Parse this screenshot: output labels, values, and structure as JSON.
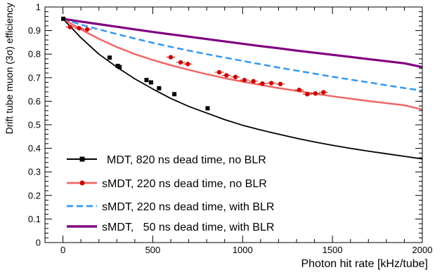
{
  "chart_data": {
    "type": "line",
    "xlabel": "Photon hit rate [kHz/tube]",
    "ylabel": "Drift tube muon (3σ) efficiency",
    "xlim": [
      -100,
      2000
    ],
    "ylim": [
      0,
      1
    ],
    "grid": false,
    "legend_position": "bottom-left",
    "x_ticks": [
      0,
      500,
      1000,
      1500,
      2000
    ],
    "x_tick_labels": [
      "0",
      "500",
      "1000",
      "1500",
      "2000"
    ],
    "y_ticks": [
      0,
      0.1,
      0.2,
      0.3,
      0.4,
      0.5,
      0.6,
      0.7,
      0.8,
      0.9,
      1
    ],
    "y_tick_labels": [
      "0",
      "0.1",
      "0.2",
      "0.3",
      "0.4",
      "0.5",
      "0.6",
      "0.7",
      "0.8",
      "0.9",
      "1"
    ],
    "series": [
      {
        "name": "MDT, 820 ns dead time, no BLR",
        "color": "#000000",
        "line_style": "solid",
        "marker": "square",
        "curve": {
          "x": [
            0,
            100,
            200,
            300,
            400,
            500,
            600,
            700,
            800,
            900,
            1000,
            1100,
            1200,
            1300,
            1400,
            1500,
            1600,
            1700,
            1800,
            1900,
            2000
          ],
          "y": [
            0.95,
            0.87,
            0.8,
            0.745,
            0.695,
            0.652,
            0.612,
            0.578,
            0.55,
            0.522,
            0.498,
            0.478,
            0.46,
            0.443,
            0.427,
            0.413,
            0.4,
            0.388,
            0.377,
            0.366,
            0.355
          ]
        },
        "points": {
          "x": [
            2,
            260,
            305,
            315,
            465,
            490,
            535,
            620,
            805
          ],
          "y": [
            0.95,
            0.785,
            0.75,
            0.745,
            0.69,
            0.68,
            0.655,
            0.63,
            0.57
          ]
        }
      },
      {
        "name": "sMDT, 220 ns dead time, no BLR",
        "color": "#f06666",
        "marker_color": "#cc0000",
        "line_style": "solid",
        "marker": "circle",
        "curve": {
          "x": [
            0,
            100,
            200,
            300,
            400,
            500,
            600,
            700,
            800,
            900,
            1000,
            1100,
            1200,
            1300,
            1400,
            1500,
            1600,
            1700,
            1800,
            1900,
            2000
          ],
          "y": [
            0.95,
            0.905,
            0.865,
            0.83,
            0.8,
            0.775,
            0.753,
            0.733,
            0.715,
            0.698,
            0.683,
            0.669,
            0.656,
            0.644,
            0.632,
            0.621,
            0.611,
            0.601,
            0.592,
            0.583,
            0.565
          ]
        },
        "points": {
          "x": [
            40,
            90,
            135,
            600,
            655,
            695,
            870,
            910,
            960,
            1010,
            1060,
            1110,
            1160,
            1210,
            1315,
            1360,
            1405,
            1450
          ],
          "y": [
            0.915,
            0.91,
            0.905,
            0.787,
            0.765,
            0.758,
            0.723,
            0.71,
            0.703,
            0.69,
            0.685,
            0.675,
            0.677,
            0.673,
            0.648,
            0.63,
            0.633,
            0.638
          ]
        },
        "x_error": 25
      },
      {
        "name": "sMDT, 220 ns dead time, with BLR",
        "color": "#3399ee",
        "line_style": "dashed",
        "curve": {
          "x": [
            0,
            100,
            200,
            300,
            400,
            500,
            600,
            700,
            800,
            900,
            1000,
            1100,
            1200,
            1300,
            1400,
            1500,
            1600,
            1700,
            1800,
            1900,
            2000
          ],
          "y": [
            0.95,
            0.925,
            0.905,
            0.885,
            0.866,
            0.848,
            0.831,
            0.815,
            0.8,
            0.785,
            0.771,
            0.757,
            0.743,
            0.73,
            0.717,
            0.704,
            0.692,
            0.68,
            0.668,
            0.656,
            0.645
          ]
        }
      },
      {
        "name": "sMDT,   50 ns dead time, with BLR",
        "color": "#800080",
        "line_style": "solid",
        "curve": {
          "x": [
            0,
            100,
            200,
            300,
            400,
            500,
            600,
            700,
            800,
            900,
            1000,
            1100,
            1200,
            1300,
            1400,
            1500,
            1600,
            1700,
            1800,
            1900,
            2000
          ],
          "y": [
            0.95,
            0.938,
            0.927,
            0.916,
            0.905,
            0.894,
            0.884,
            0.874,
            0.864,
            0.854,
            0.844,
            0.834,
            0.825,
            0.815,
            0.806,
            0.797,
            0.788,
            0.779,
            0.77,
            0.761,
            0.745
          ]
        }
      }
    ]
  }
}
